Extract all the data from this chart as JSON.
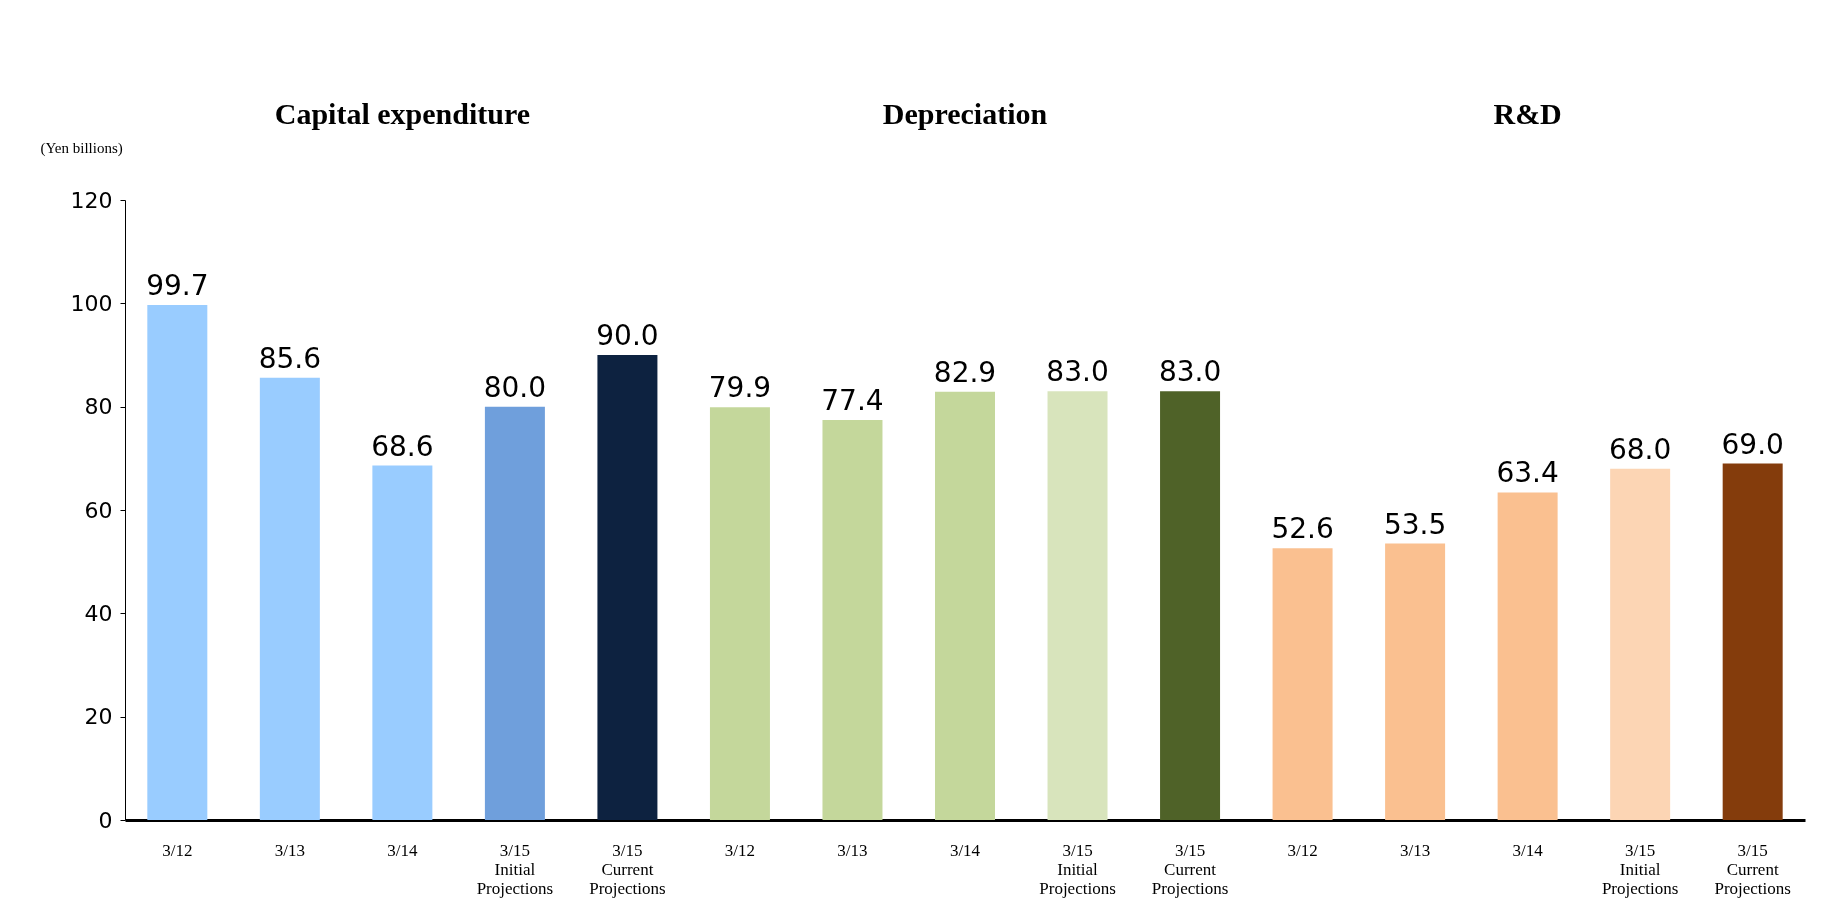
{
  "chart_data": {
    "type": "bar",
    "ylabel": "(Yen billions)",
    "annotations": [
      "Capital expenditure",
      "Depreciation",
      "R&D"
    ],
    "categories": [
      "3/12",
      "3/13",
      "3/14",
      "3/15\nInitial\nProjections",
      "3/15\nCurrent\nProjections",
      "3/12",
      "3/13",
      "3/14",
      "3/15\nInitial\nProjections",
      "3/15\nCurrent\nProjections",
      "3/12",
      "3/13",
      "3/14",
      "3/15\nInitial\nProjections",
      "3/15\nCurrent\nProjections"
    ],
    "values": [
      99.7,
      85.6,
      68.6,
      80.0,
      90.0,
      79.9,
      77.4,
      82.9,
      83.0,
      83.0,
      52.6,
      53.5,
      63.4,
      68.0,
      69.0
    ],
    "colors": [
      "#99ccff",
      "#99ccff",
      "#99ccff",
      "#6f9fdc",
      "#0d2240",
      "#c4d79b",
      "#c4d79b",
      "#c4d79b",
      "#d8e4bc",
      "#4f6228",
      "#fac090",
      "#fac090",
      "#fac090",
      "#fcd5b4",
      "#843c0c"
    ],
    "value_labels": [
      "99.7",
      "85.6",
      "68.6",
      "80.0",
      "90.0",
      "79.9",
      "77.4",
      "82.9",
      "83.0",
      "83.0",
      "52.6",
      "53.5",
      "63.4",
      "68.0",
      "69.0"
    ],
    "ylim": [
      0,
      120
    ],
    "yticks": [
      0,
      20,
      40,
      60,
      80,
      100,
      120
    ],
    "grid": false
  }
}
